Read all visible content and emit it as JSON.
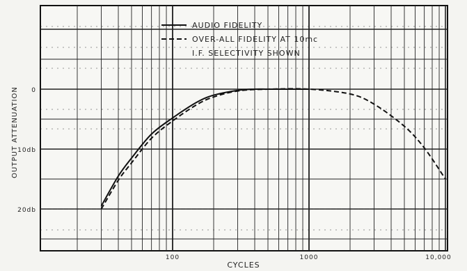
{
  "chart_data": {
    "type": "line",
    "title": "",
    "xlabel": "CYCLES",
    "ylabel": "OUTPUT ATTENUATION",
    "x_scale": "log",
    "xlim": [
      10,
      10000
    ],
    "ylim": [
      -20,
      10
    ],
    "y_tick_labels": [
      "0",
      "10db",
      "20db"
    ],
    "x_tick_labels": [
      "100",
      "1000",
      "10,000"
    ],
    "legend_position": "top-center",
    "grid": true,
    "series": [
      {
        "name": "AUDIO FIDELITY",
        "style": "solid",
        "x": [
          30,
          40,
          50,
          70,
          100,
          150,
          200,
          300,
          400,
          500,
          700,
          1000
        ],
        "y": [
          -19.5,
          -14.5,
          -11.5,
          -7.5,
          -4.8,
          -2.2,
          -1,
          -0.2,
          0,
          0,
          0,
          0
        ]
      },
      {
        "name": "OVER-ALL FIDELITY AT 10mc",
        "style": "dashed",
        "x": [
          30,
          40,
          50,
          70,
          100,
          150,
          200,
          300,
          500,
          1000,
          2000,
          3000,
          5000,
          7000,
          10000
        ],
        "y": [
          -20,
          -15.2,
          -12.3,
          -8.2,
          -5.3,
          -2.6,
          -1.3,
          -0.3,
          0,
          0,
          -0.8,
          -2.5,
          -6.2,
          -9.8,
          -15
        ]
      }
    ],
    "annotations": [
      "I.F. SELECTIVITY SHOWN"
    ]
  }
}
